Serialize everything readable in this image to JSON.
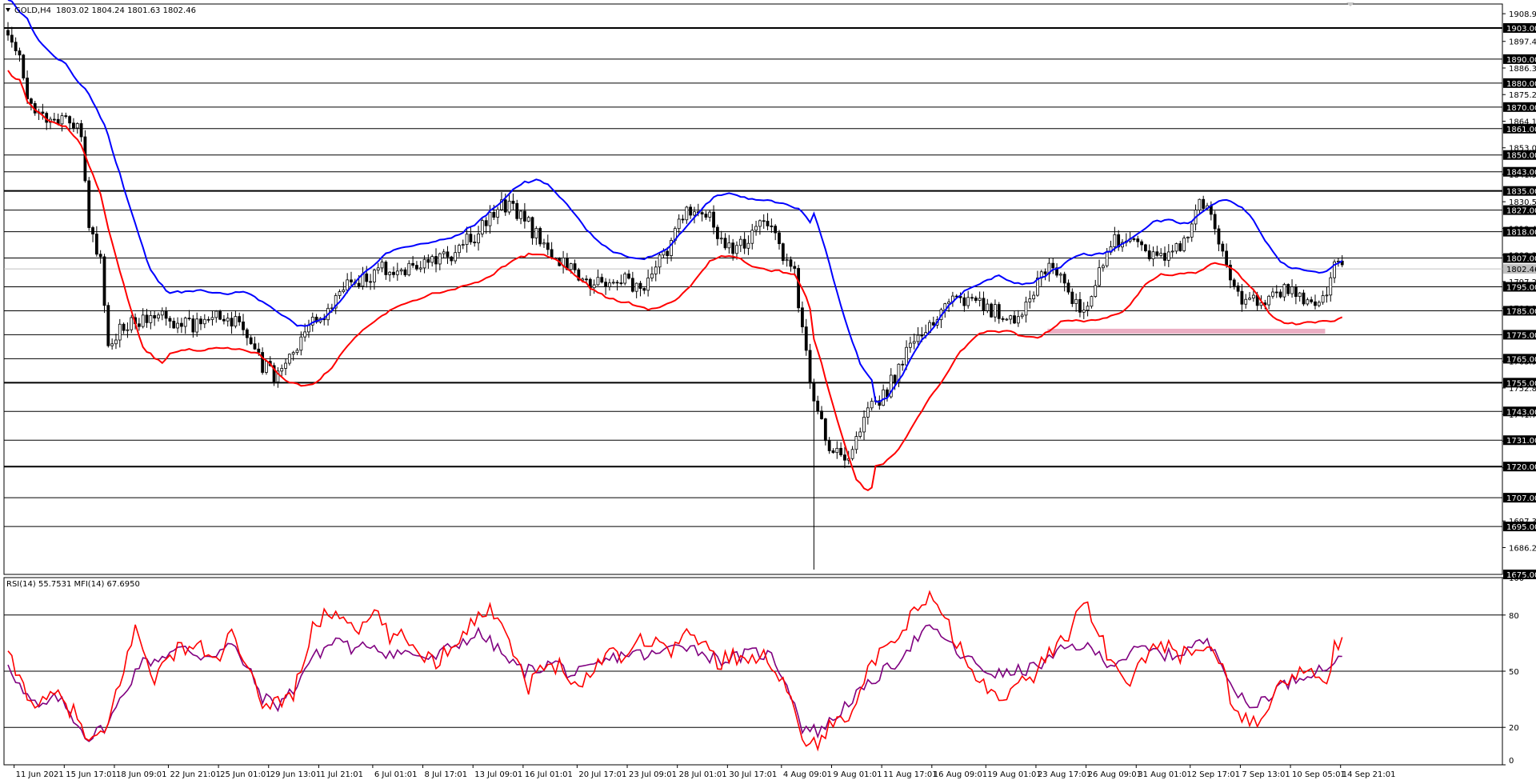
{
  "chart_data": [
    {
      "type": "candlestick",
      "symbol_title": "GOLD,H4",
      "ohlc_header": "1803.02 1804.24 1801.63 1802.46",
      "ylim": [
        1675,
        1913
      ],
      "price_axis_ticks": [
        "1908.95",
        "1897.40",
        "1886.30",
        "1875.20",
        "1864.10",
        "1853.00",
        "1841.90",
        "1830.50",
        "1819.40",
        "1808.30",
        "1797.20",
        "1786.10",
        "1763.90",
        "1752.80",
        "1741.70",
        "1730.60",
        "1719.50",
        "1697.30",
        "1686.20"
      ],
      "horizontal_levels": [
        {
          "label": "1903.00",
          "thick": true
        },
        {
          "label": "1890.00",
          "thick": false
        },
        {
          "label": "1880.00",
          "thick": false
        },
        {
          "label": "1870.00",
          "thick": false
        },
        {
          "label": "1861.00",
          "thick": false
        },
        {
          "label": "1850.00",
          "thick": false
        },
        {
          "label": "1843.00",
          "thick": false
        },
        {
          "label": "1835.00",
          "thick": true
        },
        {
          "label": "1827.00",
          "thick": false
        },
        {
          "label": "1818.00",
          "thick": false
        },
        {
          "label": "1807.00",
          "thick": false
        },
        {
          "label": "1795.00",
          "thick": false
        },
        {
          "label": "1785.00",
          "thick": false
        },
        {
          "label": "1775.00",
          "thick": false
        },
        {
          "label": "1765.00",
          "thick": false
        },
        {
          "label": "1755.00",
          "thick": true
        },
        {
          "label": "1743.00",
          "thick": false
        },
        {
          "label": "1731.00",
          "thick": false
        },
        {
          "label": "1720.00",
          "thick": true
        },
        {
          "label": "1707.00",
          "thick": false
        },
        {
          "label": "1695.00",
          "thick": false
        },
        {
          "label": "1675.00",
          "thick": false
        }
      ],
      "current_price": "1802.46",
      "support_zone": {
        "price": 1776.5,
        "from_bar": 270,
        "to_bar": 342,
        "color": "#e8a0b8"
      },
      "band_colors": {
        "upper": "#0000ff",
        "lower": "#ff0000"
      },
      "candle_color": "#000000",
      "price_path": [
        [
          0,
          1903
        ],
        [
          2,
          1896
        ],
        [
          5,
          1875
        ],
        [
          8,
          1868
        ],
        [
          12,
          1862
        ],
        [
          16,
          1865
        ],
        [
          19,
          1860
        ],
        [
          21,
          1822
        ],
        [
          24,
          1805
        ],
        [
          26,
          1772
        ],
        [
          28,
          1775
        ],
        [
          32,
          1779
        ],
        [
          40,
          1782
        ],
        [
          48,
          1779
        ],
        [
          56,
          1783
        ],
        [
          62,
          1776
        ],
        [
          66,
          1762
        ],
        [
          70,
          1757
        ],
        [
          74,
          1770
        ],
        [
          80,
          1781
        ],
        [
          86,
          1792
        ],
        [
          90,
          1797
        ],
        [
          98,
          1803
        ],
        [
          106,
          1802
        ],
        [
          114,
          1808
        ],
        [
          122,
          1818
        ],
        [
          128,
          1829
        ],
        [
          133,
          1825
        ],
        [
          140,
          1810
        ],
        [
          146,
          1803
        ],
        [
          152,
          1797
        ],
        [
          158,
          1800
        ],
        [
          165,
          1792
        ],
        [
          170,
          1808
        ],
        [
          176,
          1827
        ],
        [
          182,
          1824
        ],
        [
          186,
          1810
        ],
        [
          192,
          1812
        ],
        [
          196,
          1825
        ],
        [
          200,
          1812
        ],
        [
          204,
          1800
        ],
        [
          207,
          1765
        ],
        [
          210,
          1742
        ],
        [
          214,
          1725
        ],
        [
          218,
          1724
        ],
        [
          222,
          1742
        ],
        [
          228,
          1752
        ],
        [
          234,
          1772
        ],
        [
          240,
          1782
        ],
        [
          246,
          1789
        ],
        [
          252,
          1787
        ],
        [
          258,
          1783
        ],
        [
          262,
          1781
        ],
        [
          266,
          1793
        ],
        [
          270,
          1806
        ],
        [
          275,
          1793
        ],
        [
          279,
          1784
        ],
        [
          282,
          1797
        ],
        [
          286,
          1815
        ],
        [
          290,
          1813
        ],
        [
          296,
          1810
        ],
        [
          302,
          1808
        ],
        [
          306,
          1815
        ],
        [
          309,
          1831
        ],
        [
          313,
          1820
        ],
        [
          317,
          1799
        ],
        [
          321,
          1788
        ],
        [
          326,
          1790
        ],
        [
          331,
          1793
        ],
        [
          336,
          1790
        ],
        [
          340,
          1786
        ],
        [
          343,
          1797
        ],
        [
          344,
          1806
        ],
        [
          346,
          1803
        ]
      ],
      "spike_low": {
        "bar": 209,
        "low": 1677
      },
      "ma_period": 16,
      "atr_multiplier": 1.9
    },
    {
      "type": "line",
      "indicator_title": "RSI(14) 55.7531  MFI(14) 67.6950",
      "ylim": [
        0,
        100
      ],
      "axis_ticks": [
        "100",
        "80",
        "50",
        "20",
        "0"
      ],
      "levels": [
        80,
        50,
        20
      ],
      "series": [
        {
          "name": "RSI(14)",
          "color": "#800080"
        },
        {
          "name": "MFI(14)",
          "color": "#ff0000"
        }
      ],
      "mfi_points": [
        [
          0,
          58
        ],
        [
          4,
          42
        ],
        [
          8,
          30
        ],
        [
          12,
          38
        ],
        [
          17,
          28
        ],
        [
          21,
          12
        ],
        [
          25,
          15
        ],
        [
          29,
          45
        ],
        [
          33,
          72
        ],
        [
          38,
          47
        ],
        [
          44,
          62
        ],
        [
          49,
          64
        ],
        [
          54,
          55
        ],
        [
          58,
          70
        ],
        [
          62,
          50
        ],
        [
          66,
          33
        ],
        [
          70,
          34
        ],
        [
          74,
          38
        ],
        [
          79,
          72
        ],
        [
          83,
          82
        ],
        [
          88,
          78
        ],
        [
          92,
          72
        ],
        [
          95,
          82
        ],
        [
          99,
          68
        ],
        [
          103,
          68
        ],
        [
          107,
          60
        ],
        [
          111,
          55
        ],
        [
          116,
          66
        ],
        [
          120,
          76
        ],
        [
          124,
          82
        ],
        [
          128,
          80
        ],
        [
          131,
          60
        ],
        [
          135,
          42
        ],
        [
          139,
          52
        ],
        [
          144,
          54
        ],
        [
          148,
          40
        ],
        [
          152,
          52
        ],
        [
          156,
          62
        ],
        [
          160,
          58
        ],
        [
          164,
          68
        ],
        [
          168,
          65
        ],
        [
          172,
          62
        ],
        [
          176,
          70
        ],
        [
          180,
          66
        ],
        [
          184,
          54
        ],
        [
          188,
          60
        ],
        [
          192,
          52
        ],
        [
          196,
          62
        ],
        [
          200,
          48
        ],
        [
          204,
          30
        ],
        [
          207,
          10
        ],
        [
          210,
          12
        ],
        [
          214,
          22
        ],
        [
          218,
          28
        ],
        [
          222,
          46
        ],
        [
          226,
          58
        ],
        [
          230,
          64
        ],
        [
          234,
          78
        ],
        [
          238,
          90
        ],
        [
          242,
          82
        ],
        [
          246,
          66
        ],
        [
          250,
          48
        ],
        [
          254,
          40
        ],
        [
          258,
          38
        ],
        [
          262,
          42
        ],
        [
          266,
          48
        ],
        [
          270,
          60
        ],
        [
          275,
          70
        ],
        [
          279,
          90
        ],
        [
          283,
          70
        ],
        [
          287,
          50
        ],
        [
          291,
          44
        ],
        [
          295,
          58
        ],
        [
          299,
          66
        ],
        [
          303,
          58
        ],
        [
          307,
          60
        ],
        [
          311,
          66
        ],
        [
          315,
          50
        ],
        [
          319,
          24
        ],
        [
          323,
          22
        ],
        [
          327,
          33
        ],
        [
          331,
          44
        ],
        [
          335,
          50
        ],
        [
          339,
          46
        ],
        [
          342,
          45
        ],
        [
          344,
          62
        ],
        [
          346,
          68
        ]
      ],
      "rsi_points": [
        [
          0,
          55
        ],
        [
          4,
          38
        ],
        [
          8,
          30
        ],
        [
          13,
          36
        ],
        [
          17,
          25
        ],
        [
          21,
          14
        ],
        [
          26,
          22
        ],
        [
          30,
          38
        ],
        [
          34,
          54
        ],
        [
          38,
          56
        ],
        [
          42,
          60
        ],
        [
          46,
          62
        ],
        [
          50,
          58
        ],
        [
          54,
          60
        ],
        [
          58,
          64
        ],
        [
          62,
          52
        ],
        [
          66,
          36
        ],
        [
          70,
          32
        ],
        [
          74,
          40
        ],
        [
          78,
          55
        ],
        [
          82,
          62
        ],
        [
          86,
          68
        ],
        [
          90,
          60
        ],
        [
          94,
          65
        ],
        [
          98,
          60
        ],
        [
          102,
          60
        ],
        [
          106,
          59
        ],
        [
          110,
          56
        ],
        [
          114,
          62
        ],
        [
          118,
          66
        ],
        [
          122,
          70
        ],
        [
          126,
          64
        ],
        [
          130,
          55
        ],
        [
          134,
          50
        ],
        [
          138,
          52
        ],
        [
          142,
          55
        ],
        [
          146,
          48
        ],
        [
          150,
          50
        ],
        [
          154,
          54
        ],
        [
          158,
          58
        ],
        [
          162,
          60
        ],
        [
          166,
          58
        ],
        [
          170,
          60
        ],
        [
          174,
          66
        ],
        [
          178,
          62
        ],
        [
          182,
          58
        ],
        [
          186,
          56
        ],
        [
          190,
          58
        ],
        [
          194,
          60
        ],
        [
          198,
          58
        ],
        [
          202,
          44
        ],
        [
          206,
          20
        ],
        [
          210,
          18
        ],
        [
          214,
          24
        ],
        [
          218,
          34
        ],
        [
          222,
          40
        ],
        [
          226,
          48
        ],
        [
          230,
          54
        ],
        [
          234,
          64
        ],
        [
          238,
          72
        ],
        [
          242,
          70
        ],
        [
          246,
          60
        ],
        [
          250,
          55
        ],
        [
          254,
          50
        ],
        [
          258,
          48
        ],
        [
          262,
          50
        ],
        [
          266,
          52
        ],
        [
          270,
          56
        ],
        [
          274,
          62
        ],
        [
          278,
          64
        ],
        [
          282,
          60
        ],
        [
          286,
          54
        ],
        [
          290,
          58
        ],
        [
          294,
          62
        ],
        [
          298,
          60
        ],
        [
          302,
          58
        ],
        [
          306,
          62
        ],
        [
          310,
          66
        ],
        [
          314,
          60
        ],
        [
          318,
          40
        ],
        [
          322,
          30
        ],
        [
          326,
          36
        ],
        [
          330,
          42
        ],
        [
          334,
          46
        ],
        [
          338,
          50
        ],
        [
          342,
          52
        ],
        [
          344,
          56
        ],
        [
          346,
          55
        ]
      ]
    }
  ],
  "time_axis": [
    {
      "label": "11 Jun 2021",
      "bar": 2
    },
    {
      "label": "15 Jun 17:01",
      "bar": 15
    },
    {
      "label": "18 Jun 09:01",
      "bar": 28
    },
    {
      "label": "22 Jun 21:01",
      "bar": 42
    },
    {
      "label": "25 Jun 01:01",
      "bar": 55
    },
    {
      "label": "29 Jun 13:01",
      "bar": 68
    },
    {
      "label": "1 Jul 21:01",
      "bar": 81
    },
    {
      "label": "6 Jul 01:01",
      "bar": 95
    },
    {
      "label": "8 Jul 17:01",
      "bar": 108
    },
    {
      "label": "13 Jul 09:01",
      "bar": 121
    },
    {
      "label": "16 Jul 01:01",
      "bar": 134
    },
    {
      "label": "20 Jul 17:01",
      "bar": 148
    },
    {
      "label": "23 Jul 09:01",
      "bar": 161
    },
    {
      "label": "28 Jul 01:01",
      "bar": 174
    },
    {
      "label": "30 Jul 17:01",
      "bar": 187
    },
    {
      "label": "4 Aug 09:01",
      "bar": 201
    },
    {
      "label": "9 Aug 01:01",
      "bar": 214
    },
    {
      "label": "11 Aug 17:01",
      "bar": 227
    },
    {
      "label": "16 Aug 09:01",
      "bar": 240
    },
    {
      "label": "19 Aug 01:01",
      "bar": 254
    },
    {
      "label": "23 Aug 17:01",
      "bar": 267
    },
    {
      "label": "26 Aug 09:01",
      "bar": 280
    },
    {
      "label": "31 Aug 01:01",
      "bar": 293
    },
    {
      "label": "2 Sep 17:01",
      "bar": 307
    },
    {
      "label": "7 Sep 13:01",
      "bar": 320
    },
    {
      "label": "10 Sep 05:01",
      "bar": 333
    },
    {
      "label": "14 Sep 21:01",
      "bar": 346
    }
  ],
  "colors": {
    "background": "#ffffff",
    "foreground": "#000000",
    "tag_fill": "#000000",
    "tag_text": "#ffffff",
    "price_tag_fill": "#c0c0c0",
    "price_tag_text": "#000000"
  },
  "icons": {
    "dropdown": "triangle-down-icon"
  }
}
